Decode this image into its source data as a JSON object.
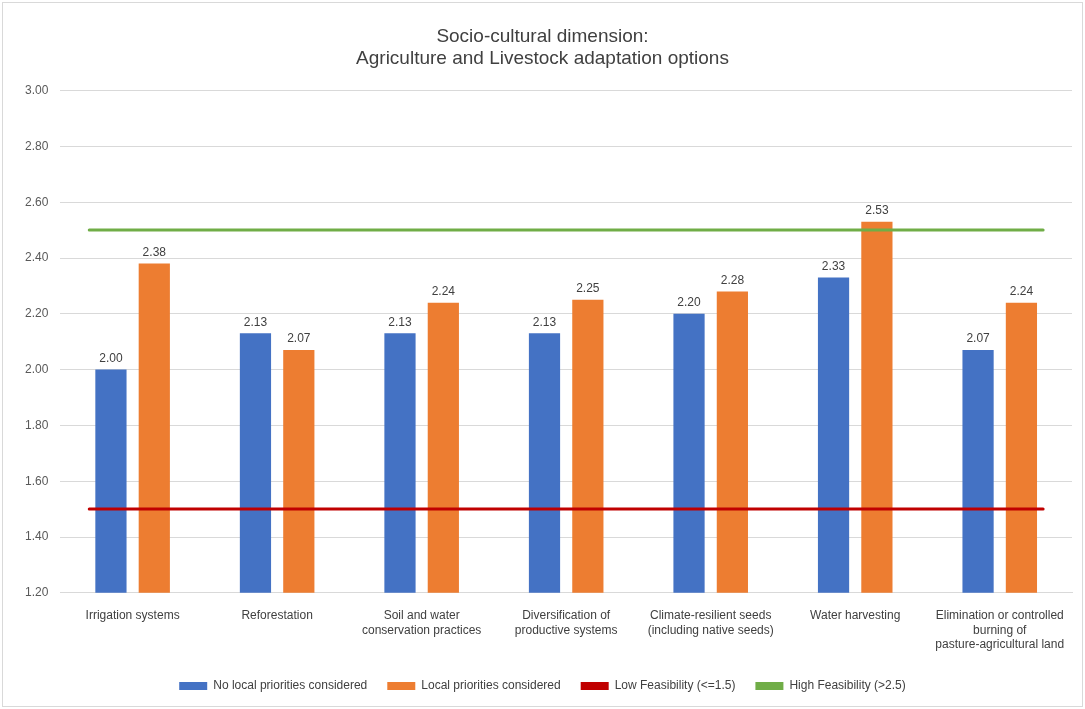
{
  "chart_data": {
    "type": "bar",
    "title": "Socio-cultural dimension:\nAgriculture and Livestock adaptation options",
    "categories": [
      "Irrigation systems",
      "Reforestation",
      "Soil and water conservation practices",
      "Diversification of productive systems",
      "Climate-resilient seeds (including native seeds)",
      "Water harvesting",
      "Elimination or controlled burning of pasture-agricultural land"
    ],
    "series": [
      {
        "name": "No local priorities considered",
        "color": "#4472c4",
        "values": [
          2.0,
          2.13,
          2.13,
          2.13,
          2.2,
          2.33,
          2.07
        ],
        "value_labels": [
          "2.00",
          "2.13",
          "2.13",
          "2.13",
          "2.20",
          "2.33",
          "2.07"
        ]
      },
      {
        "name": "Local priorities considered",
        "color": "#ed7d31",
        "values": [
          2.38,
          2.07,
          2.24,
          2.25,
          2.28,
          2.53,
          2.24
        ],
        "value_labels": [
          "2.38",
          "2.07",
          "2.24",
          "2.25",
          "2.28",
          "2.53",
          "2.24"
        ]
      }
    ],
    "ref_lines": [
      {
        "axis": "y",
        "value": 1.5,
        "label": "Low Feasibility (<=1.5)",
        "color": "#c00000"
      },
      {
        "axis": "y",
        "value": 2.5,
        "label": "High Feasibility (>2.5)",
        "color": "#70ad47"
      }
    ],
    "ylim": [
      1.2,
      3.0
    ],
    "yticks": [
      {
        "value": 1.2,
        "label": "1.20"
      },
      {
        "value": 1.4,
        "label": "1.40"
      },
      {
        "value": 1.6,
        "label": "1.60"
      },
      {
        "value": 1.8,
        "label": "1.80"
      },
      {
        "value": 2.0,
        "label": "2.00"
      },
      {
        "value": 2.2,
        "label": "2.20"
      },
      {
        "value": 2.4,
        "label": "2.40"
      },
      {
        "value": 2.6,
        "label": "2.60"
      },
      {
        "value": 2.8,
        "label": "2.80"
      },
      {
        "value": 3.0,
        "label": "3.00"
      }
    ],
    "grid": "y",
    "legend": "bottom"
  }
}
